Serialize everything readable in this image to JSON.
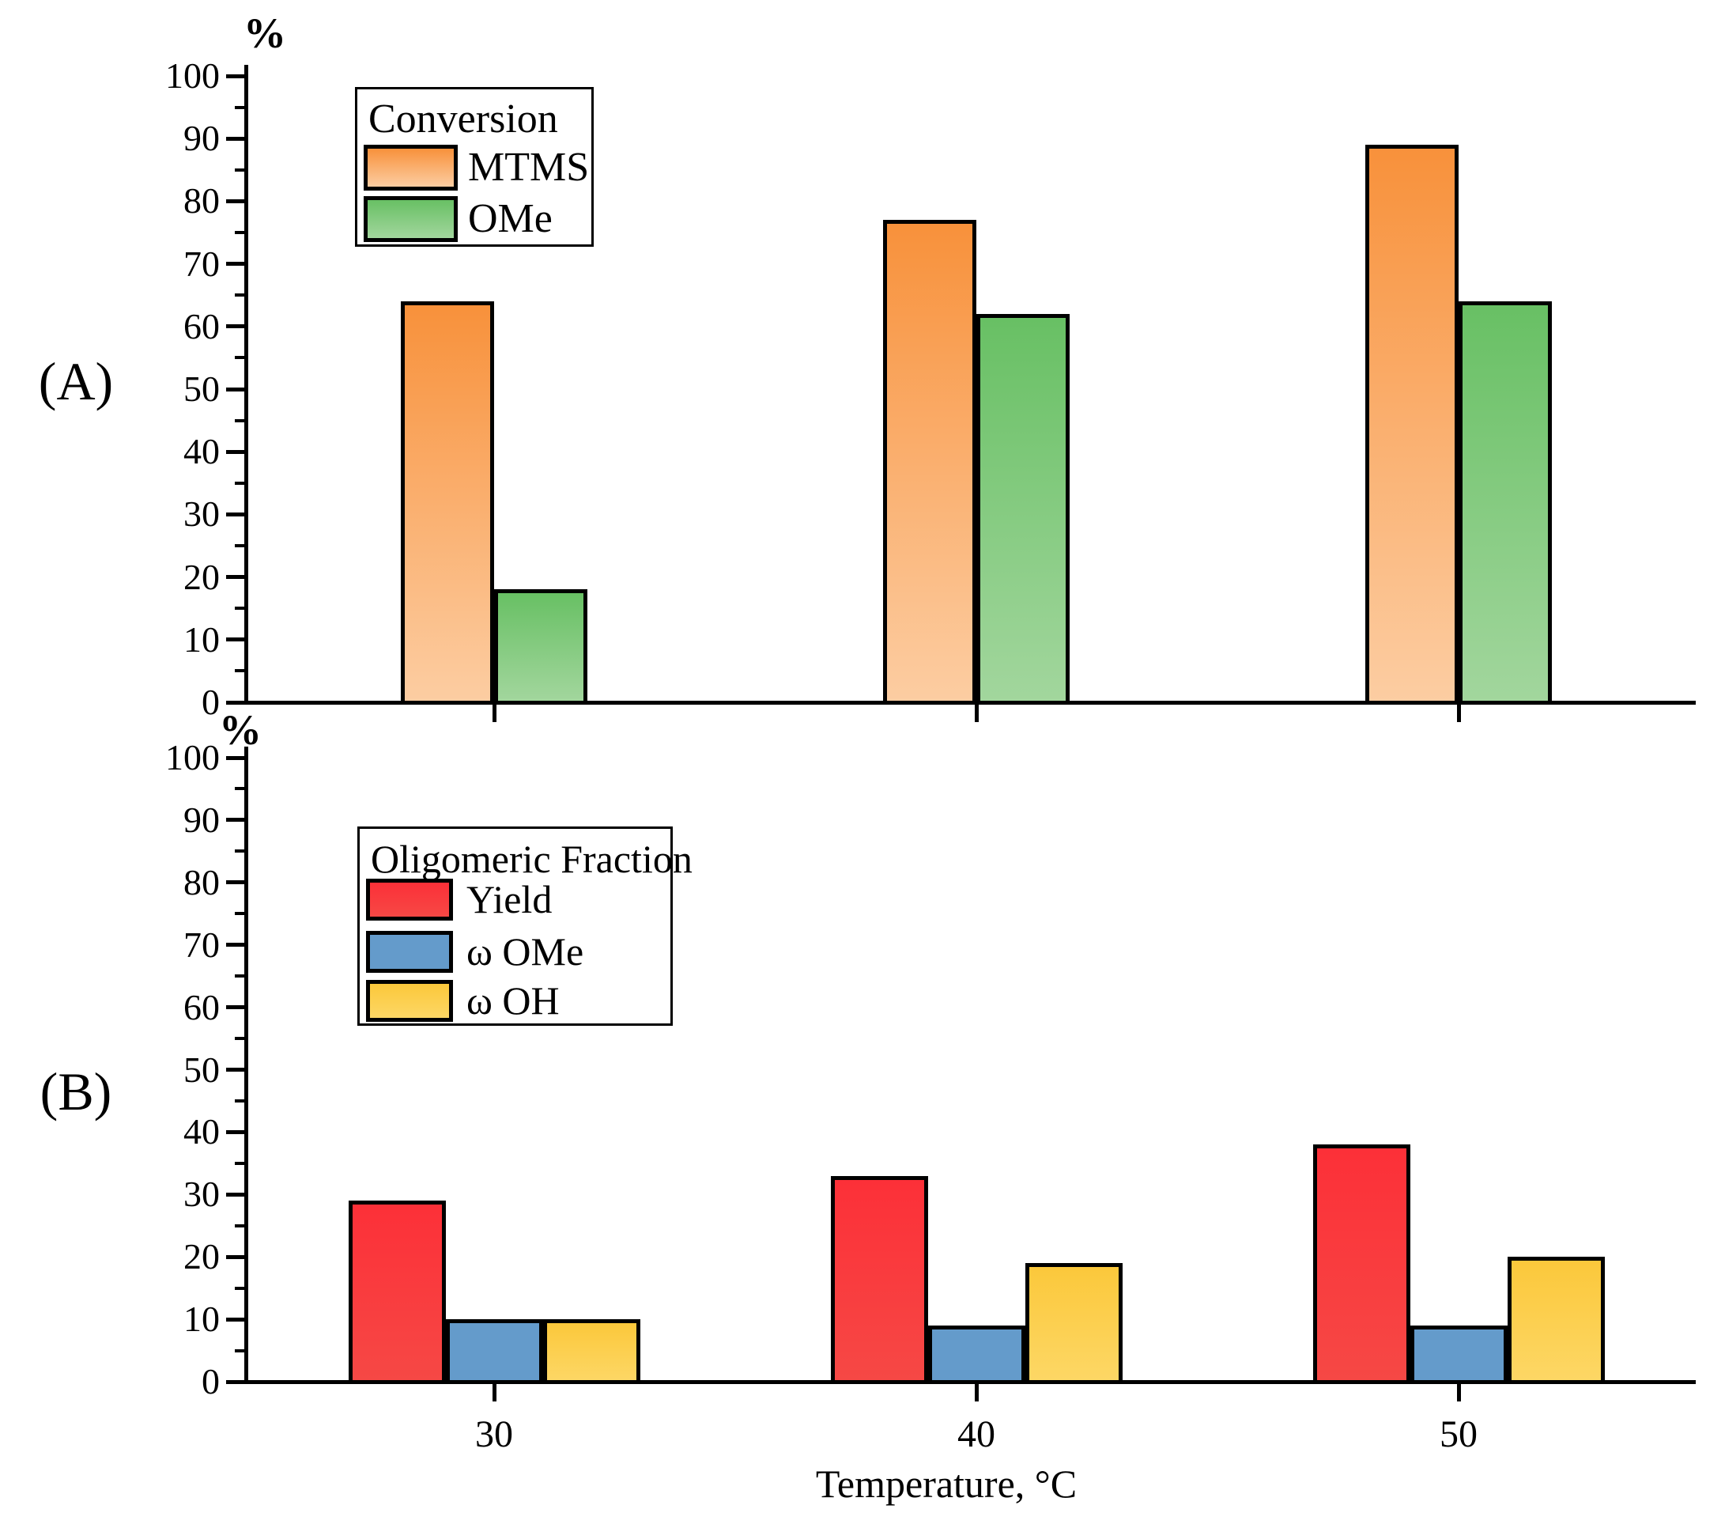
{
  "figure": {
    "bg_color": "#ffffff",
    "panel_a_label": "(A)",
    "panel_b_label": "(B)",
    "x_axis_title": "Temperature, °C",
    "y_unit": "%"
  },
  "chart_data": [
    {
      "panel": "A",
      "type": "bar",
      "legend_title": "Conversion",
      "legend_position": "top-left",
      "categories": [
        "30",
        "40",
        "50"
      ],
      "series": [
        {
          "name": "MTMS",
          "values": [
            64,
            77,
            89
          ],
          "color_top": "#F8913B",
          "color_bottom": "#FCCDA2"
        },
        {
          "name": "OMe",
          "values": [
            18,
            62,
            64
          ],
          "color_top": "#68C064",
          "color_bottom": "#A2D69D"
        }
      ],
      "xlabel": "",
      "ylabel": "%",
      "ylim": [
        0,
        100
      ],
      "yticks": [
        0,
        10,
        20,
        30,
        40,
        50,
        60,
        70,
        80,
        90,
        100
      ],
      "grid": false
    },
    {
      "panel": "B",
      "type": "bar",
      "legend_title": "Oligomeric Fraction",
      "legend_position": "top-left",
      "categories": [
        "30",
        "40",
        "50"
      ],
      "series": [
        {
          "name": "Yield",
          "values": [
            29,
            33,
            38
          ],
          "color_top": "#FC3038",
          "color_bottom": "#F64845"
        },
        {
          "name": "ω OMe",
          "values": [
            10,
            9,
            9
          ],
          "color_top": "#649BCB",
          "color_bottom": "#649BCB"
        },
        {
          "name": "ω OH",
          "values": [
            10,
            19,
            20
          ],
          "color_top": "#FBC83B",
          "color_bottom": "#FDD765"
        }
      ],
      "xlabel": "Temperature, °C",
      "ylabel": "%",
      "ylim": [
        0,
        100
      ],
      "yticks": [
        0,
        10,
        20,
        30,
        40,
        50,
        60,
        70,
        80,
        90,
        100
      ],
      "grid": false
    }
  ]
}
